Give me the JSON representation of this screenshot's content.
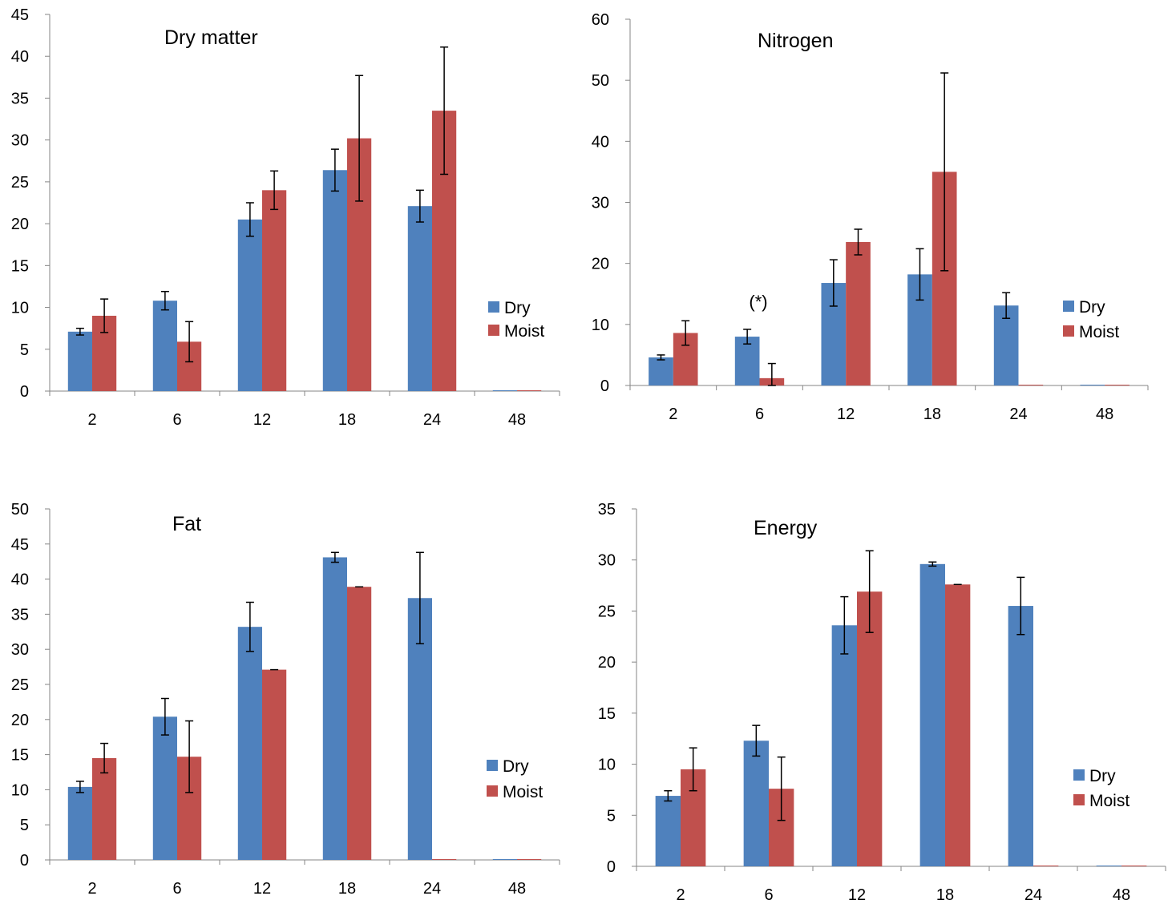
{
  "chart_data": [
    {
      "type": "bar",
      "title": "Dry matter",
      "categories": [
        "2",
        "6",
        "12",
        "18",
        "24",
        "48"
      ],
      "ylim": [
        0,
        45
      ],
      "yticks": [
        0,
        5,
        10,
        15,
        20,
        25,
        30,
        35,
        40,
        45
      ],
      "legend_position": "right",
      "grid": false,
      "annotation": "",
      "series": [
        {
          "name": "Dry",
          "color": "#4f81bd",
          "values": [
            7.1,
            10.8,
            20.5,
            26.4,
            22.1,
            0
          ],
          "errors": [
            0.4,
            1.1,
            2.0,
            2.5,
            1.9,
            0
          ]
        },
        {
          "name": "Moist",
          "color": "#c0504d",
          "values": [
            9.0,
            5.9,
            24.0,
            30.2,
            33.5,
            0
          ],
          "errors": [
            2.0,
            2.4,
            2.3,
            7.5,
            7.6,
            0
          ]
        }
      ]
    },
    {
      "type": "bar",
      "title": "Nitrogen",
      "categories": [
        "2",
        "6",
        "12",
        "18",
        "24",
        "48"
      ],
      "ylim": [
        0,
        60
      ],
      "yticks": [
        0,
        10,
        20,
        30,
        40,
        50,
        60
      ],
      "legend_position": "right",
      "grid": false,
      "annotation": "(*)",
      "series": [
        {
          "name": "Dry",
          "color": "#4f81bd",
          "values": [
            4.6,
            8.0,
            16.8,
            18.2,
            13.1,
            0
          ],
          "errors": [
            0.4,
            1.2,
            3.8,
            4.2,
            2.1,
            0
          ]
        },
        {
          "name": "Moist",
          "color": "#c0504d",
          "values": [
            8.6,
            1.2,
            23.5,
            35.0,
            0,
            0
          ],
          "errors": [
            2.0,
            2.4,
            2.1,
            16.2,
            0,
            0
          ]
        }
      ]
    },
    {
      "type": "bar",
      "title": "Fat",
      "categories": [
        "2",
        "6",
        "12",
        "18",
        "24",
        "48"
      ],
      "ylim": [
        0,
        50
      ],
      "yticks": [
        0,
        5,
        10,
        15,
        20,
        25,
        30,
        35,
        40,
        45,
        50
      ],
      "legend_position": "right",
      "grid": false,
      "annotation": "",
      "series": [
        {
          "name": "Dry",
          "color": "#4f81bd",
          "values": [
            10.4,
            20.4,
            33.2,
            43.1,
            37.3,
            0
          ],
          "errors": [
            0.8,
            2.6,
            3.5,
            0.7,
            6.5,
            0
          ]
        },
        {
          "name": "Moist",
          "color": "#c0504d",
          "values": [
            14.5,
            14.7,
            27.1,
            38.9,
            0,
            0
          ],
          "errors": [
            2.1,
            5.1,
            0,
            0,
            0,
            0
          ]
        }
      ]
    },
    {
      "type": "bar",
      "title": "Energy",
      "categories": [
        "2",
        "6",
        "12",
        "18",
        "24",
        "48"
      ],
      "ylim": [
        0,
        35
      ],
      "yticks": [
        0,
        5,
        10,
        15,
        20,
        25,
        30,
        35
      ],
      "legend_position": "right",
      "grid": false,
      "annotation": "",
      "series": [
        {
          "name": "Dry",
          "color": "#4f81bd",
          "values": [
            6.9,
            12.3,
            23.6,
            29.6,
            25.5,
            0
          ],
          "errors": [
            0.5,
            1.5,
            2.8,
            0.2,
            2.8,
            0
          ]
        },
        {
          "name": "Moist",
          "color": "#c0504d",
          "values": [
            9.5,
            7.6,
            26.9,
            27.6,
            0,
            0
          ],
          "errors": [
            2.1,
            3.1,
            4.0,
            0,
            0,
            0
          ]
        }
      ]
    }
  ]
}
